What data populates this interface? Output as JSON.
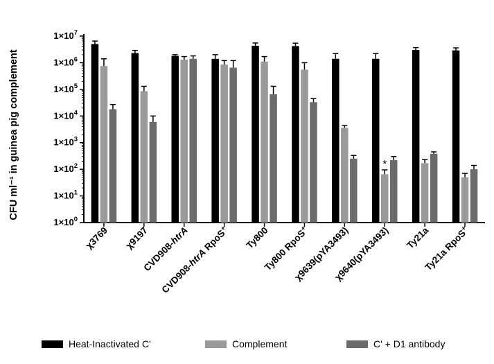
{
  "chart_data": {
    "type": "bar",
    "title": "",
    "xlabel": "",
    "ylabel": "CFU ml⁻¹ in guinea pig complement",
    "yscale": "log10",
    "ylim": [
      1,
      10000000
    ],
    "yticks": [
      {
        "value": 1,
        "mantissa": "1×10",
        "exp": "0"
      },
      {
        "value": 10,
        "mantissa": "1×10",
        "exp": "1"
      },
      {
        "value": 100,
        "mantissa": "1×10",
        "exp": "2"
      },
      {
        "value": 1000,
        "mantissa": "1×10",
        "exp": "3"
      },
      {
        "value": 10000,
        "mantissa": "1×10",
        "exp": "4"
      },
      {
        "value": 100000,
        "mantissa": "1×10",
        "exp": "5"
      },
      {
        "value": 1000000,
        "mantissa": "1×10",
        "exp": "6"
      },
      {
        "value": 10000000,
        "mantissa": "1×10",
        "exp": "7"
      }
    ],
    "categories": [
      {
        "main": "χ3769",
        "italic": "",
        "suffix": "",
        "sup": ""
      },
      {
        "main": "χ9197",
        "italic": "",
        "suffix": "",
        "sup": ""
      },
      {
        "main": "CVD908-",
        "italic": "htrA",
        "suffix": "",
        "sup": ""
      },
      {
        "main": "CVD908-",
        "italic": "htrA",
        "suffix": " RpoS",
        "sup": "+"
      },
      {
        "main": "Ty800",
        "italic": "",
        "suffix": "",
        "sup": ""
      },
      {
        "main": "Ty800 RpoS",
        "italic": "",
        "suffix": "",
        "sup": "+"
      },
      {
        "main": "χ9639(pYA3493)",
        "italic": "",
        "suffix": "",
        "sup": ""
      },
      {
        "main": "χ9640(pYA3493)",
        "italic": "",
        "suffix": "",
        "sup": ""
      },
      {
        "main": "Ty21a",
        "italic": "",
        "suffix": "",
        "sup": ""
      },
      {
        "main": "Ty21a RpoS",
        "italic": "",
        "suffix": "",
        "sup": "+"
      }
    ],
    "series": [
      {
        "name": "Heat-Inactivated C'",
        "color": "#000000",
        "values": [
          5000000,
          2300000,
          1800000,
          1400000,
          4300000,
          4200000,
          1400000,
          1400000,
          3000000,
          2900000
        ],
        "errors": [
          6500000,
          2900000,
          2000000,
          2000000,
          5500000,
          5400000,
          2200000,
          2200000,
          3700000,
          3600000
        ]
      },
      {
        "name": "Complement",
        "color": "#9a9a9a",
        "values": [
          750000,
          85000,
          1300000,
          850000,
          1100000,
          550000,
          3600,
          65,
          170,
          50
        ],
        "errors": [
          1400000,
          130000,
          1700000,
          1200000,
          1700000,
          1000000,
          4400,
          95,
          230,
          70
        ]
      },
      {
        "name": "C' + D1 antibody",
        "color": "#6b6b6b",
        "values": [
          18000,
          6000,
          1400000,
          650000,
          65000,
          33000,
          250,
          220,
          380,
          100
        ],
        "errors": [
          27000,
          10000,
          1800000,
          1200000,
          130000,
          45000,
          330,
          300,
          450,
          140
        ]
      }
    ],
    "annotations": [
      {
        "text": "*",
        "category": 7,
        "series": 1
      }
    ],
    "legend": {
      "position": "bottom"
    },
    "grid": false
  }
}
